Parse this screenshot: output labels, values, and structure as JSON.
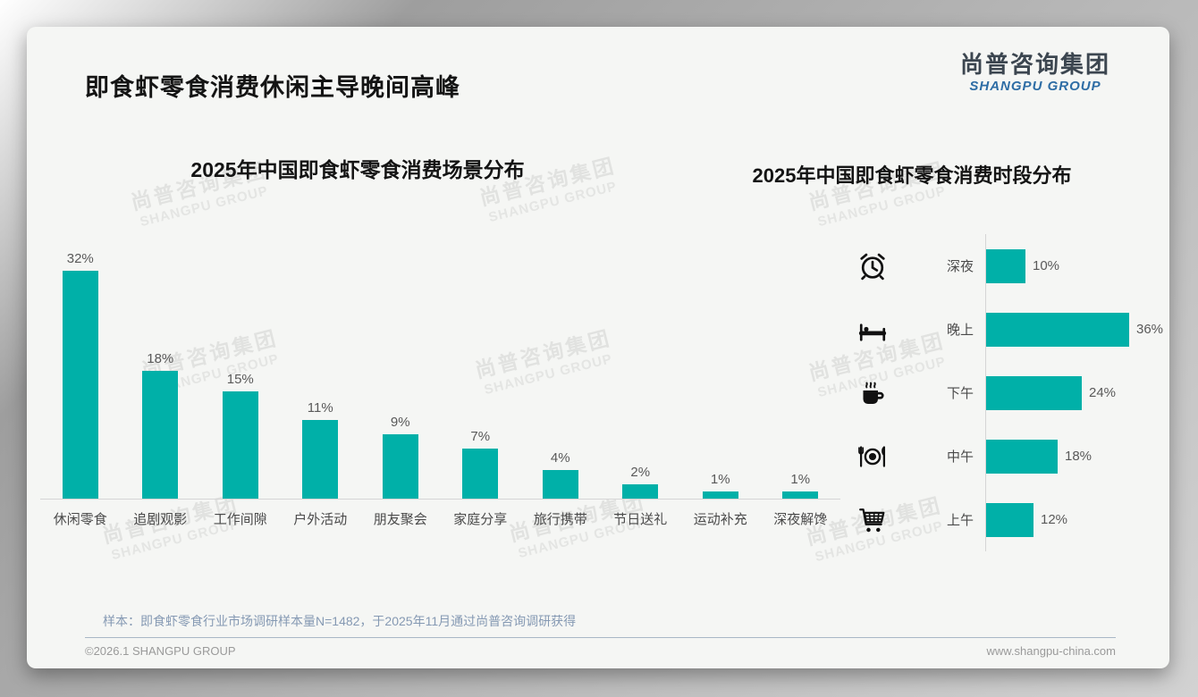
{
  "page": {
    "title": "即食虾零食消费休闲主导晚间高峰",
    "logo": {
      "cn": "尚普咨询集团",
      "en": "SHANGPU GROUP"
    },
    "watermark": {
      "cn": "尚普咨询集团",
      "en": "SHANGPU GROUP"
    },
    "footer": {
      "note": "样本：即食虾零食行业市场调研样本量N=1482，于2025年11月通过尚普咨询调研获得",
      "copyright": "©2026.1 SHANGPU GROUP",
      "website": "www.shangpu-china.com"
    }
  },
  "colors": {
    "accent": "#00B0A8",
    "logo_blue": "#2E6DA5",
    "note_blue": "#8599B3"
  },
  "chart_data": [
    {
      "type": "bar",
      "orientation": "vertical",
      "title": "2025年中国即食虾零食消费场景分布",
      "categories": [
        "休闲零食",
        "追剧观影",
        "工作间隙",
        "户外活动",
        "朋友聚会",
        "家庭分享",
        "旅行携带",
        "节日送礼",
        "运动补充",
        "深夜解馋"
      ],
      "values": [
        32,
        18,
        15,
        11,
        9,
        7,
        4,
        2,
        1,
        1
      ],
      "unit": "%",
      "ylim": [
        0,
        32
      ],
      "grid": false,
      "data_labels": true
    },
    {
      "type": "bar",
      "orientation": "horizontal",
      "title": "2025年中国即食虾零食消费时段分布",
      "categories": [
        "深夜",
        "晚上",
        "下午",
        "中午",
        "上午"
      ],
      "values": [
        10,
        36,
        24,
        18,
        12
      ],
      "icons": [
        "alarm-clock-icon",
        "bed-icon",
        "coffee-icon",
        "dining-icon",
        "cart-icon"
      ],
      "unit": "%",
      "xlim": [
        0,
        36
      ],
      "grid": false,
      "data_labels": true
    }
  ]
}
